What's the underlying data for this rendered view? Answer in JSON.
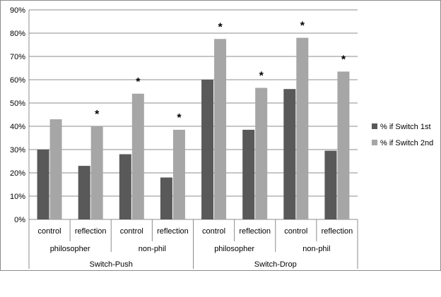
{
  "chart_data": {
    "type": "bar",
    "title": "",
    "xlabel": "",
    "ylabel": "",
    "ylim": [
      0,
      90
    ],
    "y_ticks": [
      "0%",
      "10%",
      "20%",
      "30%",
      "40%",
      "50%",
      "60%",
      "70%",
      "80%",
      "90%"
    ],
    "grid": "horizontal",
    "legend_position": "right",
    "categories": [
      "control",
      "reflection",
      "control",
      "reflection",
      "control",
      "reflection",
      "control",
      "reflection"
    ],
    "groups_level2": [
      "philosopher",
      "non-phil",
      "philosopher",
      "non-phil"
    ],
    "groups_level1": [
      "Switch-Push",
      "Switch-Drop"
    ],
    "series": [
      {
        "name": "% if Switch 1st",
        "color": "#595959",
        "values": [
          30,
          23,
          28,
          18,
          60,
          38.5,
          56,
          29.5
        ]
      },
      {
        "name": "% if Switch 2nd",
        "color": "#a6a6a6",
        "values": [
          43,
          40,
          54,
          38.5,
          77.5,
          56.5,
          78,
          63.5
        ]
      }
    ],
    "significance_markers": [
      {
        "category_index": 1,
        "series_index": 1,
        "label": "*"
      },
      {
        "category_index": 2,
        "series_index": 1,
        "label": "*"
      },
      {
        "category_index": 3,
        "series_index": 1,
        "label": "*"
      },
      {
        "category_index": 4,
        "series_index": 1,
        "label": "*"
      },
      {
        "category_index": 5,
        "series_index": 1,
        "label": "*"
      },
      {
        "category_index": 6,
        "series_index": 1,
        "label": "*"
      },
      {
        "category_index": 7,
        "series_index": 1,
        "label": "*"
      }
    ]
  }
}
